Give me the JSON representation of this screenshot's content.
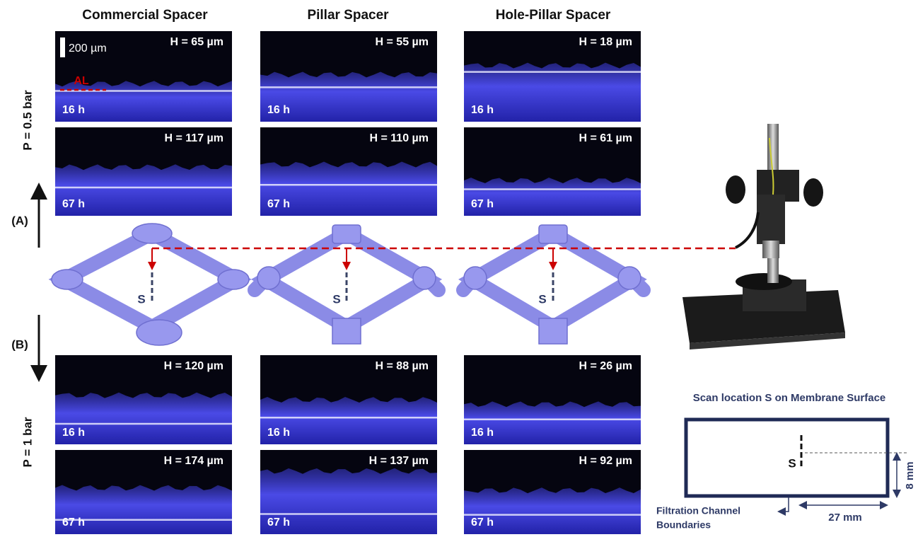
{
  "columns": [
    "Commercial Spacer",
    "Pillar Spacer",
    "Hole-Pillar Spacer"
  ],
  "pressure_labels": [
    "P = 0.5 bar",
    "P = 1 bar"
  ],
  "panel_labels": [
    "(A)",
    "(B)"
  ],
  "scale_bar": "200 µm",
  "al_label": "AL",
  "images": [
    [
      {
        "height": "H = 65 µm",
        "time": "16 h"
      },
      {
        "height": "H = 55 µm",
        "time": "16 h"
      },
      {
        "height": "H = 18 µm",
        "time": "16 h"
      }
    ],
    [
      {
        "height": "H = 117 µm",
        "time": "67 h"
      },
      {
        "height": "H = 110 µm",
        "time": "67 h"
      },
      {
        "height": "H = 61 µm",
        "time": "67 h"
      }
    ],
    [
      {
        "height": "H = 120 µm",
        "time": "16 h"
      },
      {
        "height": "H = 88 µm",
        "time": "16 h"
      },
      {
        "height": "H = 26 µm",
        "time": "16 h"
      }
    ],
    [
      {
        "height": "H = 174 µm",
        "time": "67 h"
      },
      {
        "height": "H = 137 µm",
        "time": "67 h"
      },
      {
        "height": "H = 92 µm",
        "time": "67 h"
      }
    ]
  ],
  "spacer_labels": [
    "S",
    "S",
    "S"
  ],
  "scan": {
    "title": "Scan location S on Membrane Surface",
    "point": "S",
    "height": "8 mm",
    "width": "27 mm",
    "boundaries": [
      "Filtration Channel",
      "Boundaries"
    ]
  }
}
